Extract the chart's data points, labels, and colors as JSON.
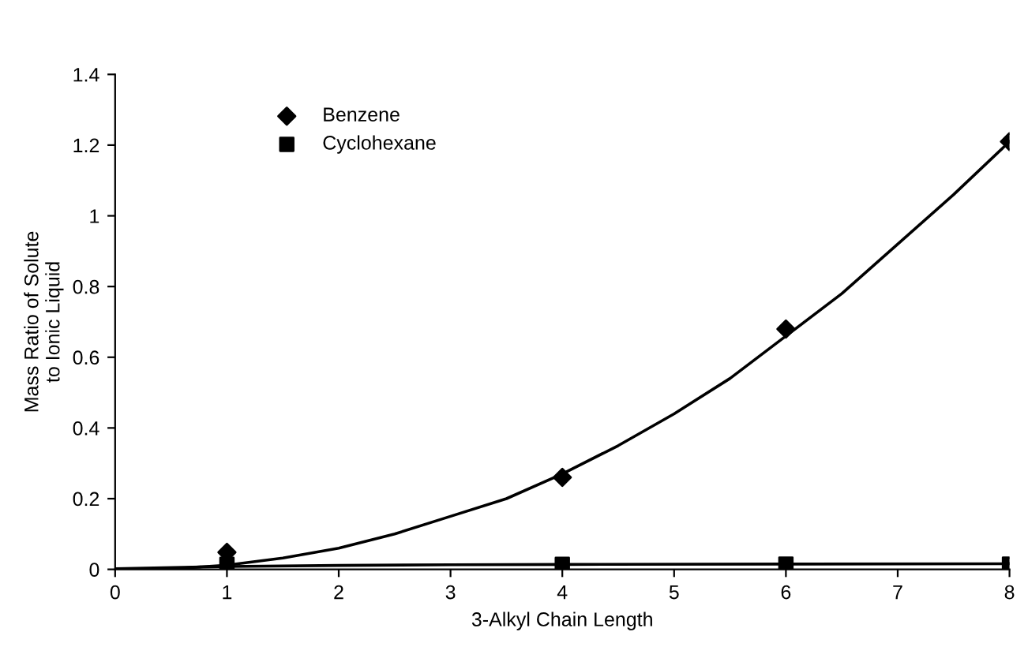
{
  "chart_data": {
    "type": "scatter",
    "xlabel": "3-Alkyl Chain Length",
    "ylabel": "Mass Ratio of Solute\nto Ionic Liquid",
    "xlim": [
      0,
      8
    ],
    "ylim": [
      0,
      1.4
    ],
    "xticks": [
      0,
      1,
      2,
      3,
      4,
      5,
      6,
      7,
      8
    ],
    "yticks": [
      0,
      0.2,
      0.4,
      0.6,
      0.8,
      1,
      1.2,
      1.4
    ],
    "grid": false,
    "legend": "top left",
    "series": [
      {
        "name": "Benzene",
        "marker": "diamond",
        "color": "#000000",
        "x": [
          1,
          4,
          6,
          8
        ],
        "values": [
          0.048,
          0.26,
          0.68,
          1.21
        ]
      },
      {
        "name": "Cyclohexane",
        "marker": "square",
        "color": "#000000",
        "x": [
          1,
          4,
          6,
          8
        ],
        "values": [
          0.014,
          0.014,
          0.015,
          0.015
        ]
      },
      {
        "type": "line",
        "marker": "none",
        "color": "#000000",
        "x": [
          0,
          0.5,
          1,
          1.5,
          2,
          2.5,
          3,
          3.5,
          4,
          4.5,
          5,
          5.5,
          6,
          6.5,
          7,
          7.5,
          8
        ],
        "values": [
          0,
          0.001,
          0.012,
          0.032,
          0.06,
          0.1,
          0.15,
          0.2,
          0.27,
          0.35,
          0.44,
          0.54,
          0.66,
          0.78,
          0.92,
          1.06,
          1.21
        ]
      },
      {
        "type": "line",
        "marker": "none",
        "color": "#000000",
        "x": [
          0,
          1,
          2,
          3,
          4,
          6,
          8
        ],
        "values": [
          0.002,
          0.008,
          0.011,
          0.013,
          0.014,
          0.015,
          0.016
        ]
      }
    ]
  }
}
